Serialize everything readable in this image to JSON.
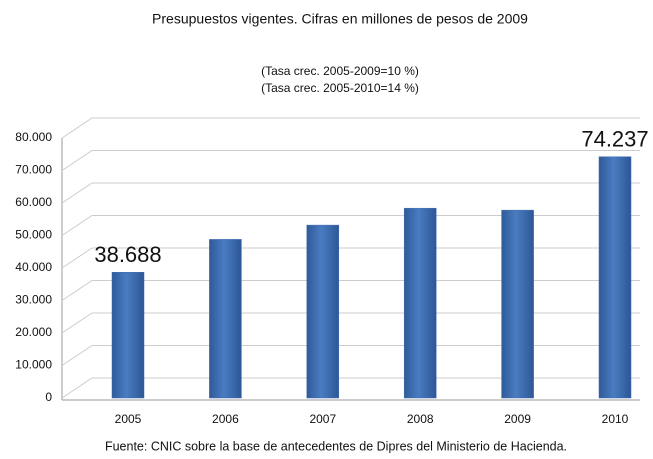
{
  "chart_data": {
    "type": "bar",
    "title": "Presupuestos vigentes. Cifras en millones de pesos de 2009",
    "subtitle": [
      "(Tasa crec. 2005-2009=10 %)",
      "(Tasa crec. 2005-2010=14 %)"
    ],
    "source": "Fuente: CNIC sobre la base de antecedentes de Dipres del Ministerio de Hacienda.",
    "categories": [
      "2005",
      "2006",
      "2007",
      "2008",
      "2009",
      "2010"
    ],
    "values": [
      38688,
      48800,
      53200,
      58400,
      57800,
      74237
    ],
    "value_labels": [
      "38.688",
      null,
      null,
      null,
      null,
      "74.237"
    ],
    "color": "#3d6db3",
    "ylim": [
      0,
      80000
    ],
    "yticks": [
      0,
      {
        "value": 10000,
        "label": "10.000"
      },
      {
        "value": 20000,
        "label": "20.000"
      },
      {
        "value": 30000,
        "label": "30.000"
      },
      {
        "value": 40000,
        "label": "40.000"
      },
      {
        "value": 50000,
        "label": "50.000"
      },
      {
        "value": 60000,
        "label": "60.000"
      },
      {
        "value": 70000,
        "label": "70.000"
      },
      {
        "value": 80000,
        "label": "80.000"
      }
    ],
    "grid": true
  }
}
